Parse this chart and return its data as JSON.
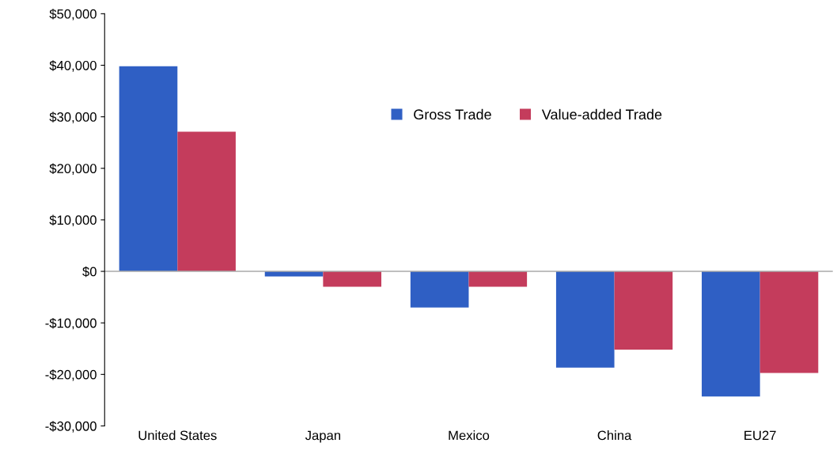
{
  "chart_data": {
    "type": "bar",
    "categories": [
      "United States",
      "Japan",
      "Mexico",
      "China",
      "EU27"
    ],
    "series": [
      {
        "name": "Gross Trade",
        "color": "#2f5fc4",
        "values": [
          39800,
          -1000,
          -7000,
          -18700,
          -24300
        ]
      },
      {
        "name": "Value-added Trade",
        "color": "#c43c5c",
        "values": [
          27100,
          -3000,
          -3000,
          -15200,
          -19700
        ]
      }
    ],
    "ylim": [
      -30000,
      50000
    ],
    "yticks": [
      {
        "value": -30000,
        "label": "-$30,000"
      },
      {
        "value": -20000,
        "label": "-$20,000"
      },
      {
        "value": -10000,
        "label": "-$10,000"
      },
      {
        "value": 0,
        "label": "$0"
      },
      {
        "value": 10000,
        "label": "$10,000"
      },
      {
        "value": 20000,
        "label": "$20,000"
      },
      {
        "value": 30000,
        "label": "$30,000"
      },
      {
        "value": 40000,
        "label": "$40,000"
      },
      {
        "value": 50000,
        "label": "$50,000"
      }
    ],
    "ref_lines": [
      {
        "axis": "y",
        "value": 0,
        "color": "#aaaaaa"
      }
    ],
    "legend": "top"
  }
}
